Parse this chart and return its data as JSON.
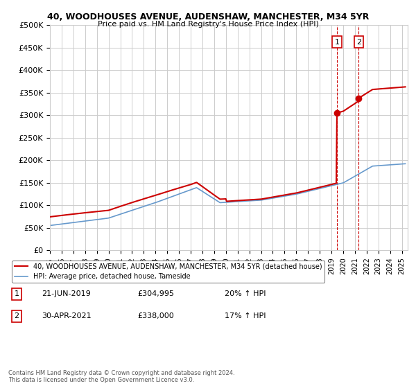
{
  "title": "40, WOODHOUSES AVENUE, AUDENSHAW, MANCHESTER, M34 5YR",
  "subtitle": "Price paid vs. HM Land Registry's House Price Index (HPI)",
  "ylabel_ticks": [
    "£0",
    "£50K",
    "£100K",
    "£150K",
    "£200K",
    "£250K",
    "£300K",
    "£350K",
    "£400K",
    "£450K",
    "£500K"
  ],
  "ytick_values": [
    0,
    50000,
    100000,
    150000,
    200000,
    250000,
    300000,
    350000,
    400000,
    450000,
    500000
  ],
  "ylim": [
    0,
    500000
  ],
  "xlim_start": 1995.0,
  "xlim_end": 2025.5,
  "red_line_color": "#cc0000",
  "blue_line_color": "#6699cc",
  "marker1_x": 2019.47,
  "marker1_y": 304995,
  "marker2_x": 2021.33,
  "marker2_y": 338000,
  "vline1_x": 2019.47,
  "vline2_x": 2021.33,
  "legend_label_red": "40, WOODHOUSES AVENUE, AUDENSHAW, MANCHESTER, M34 5YR (detached house)",
  "legend_label_blue": "HPI: Average price, detached house, Tameside",
  "transaction1_date": "21-JUN-2019",
  "transaction1_price": "£304,995",
  "transaction1_hpi": "20% ↑ HPI",
  "transaction2_date": "30-APR-2021",
  "transaction2_price": "£338,000",
  "transaction2_hpi": "17% ↑ HPI",
  "footnote": "Contains HM Land Registry data © Crown copyright and database right 2024.\nThis data is licensed under the Open Government Licence v3.0.",
  "background_color": "#ffffff",
  "grid_color": "#cccccc"
}
